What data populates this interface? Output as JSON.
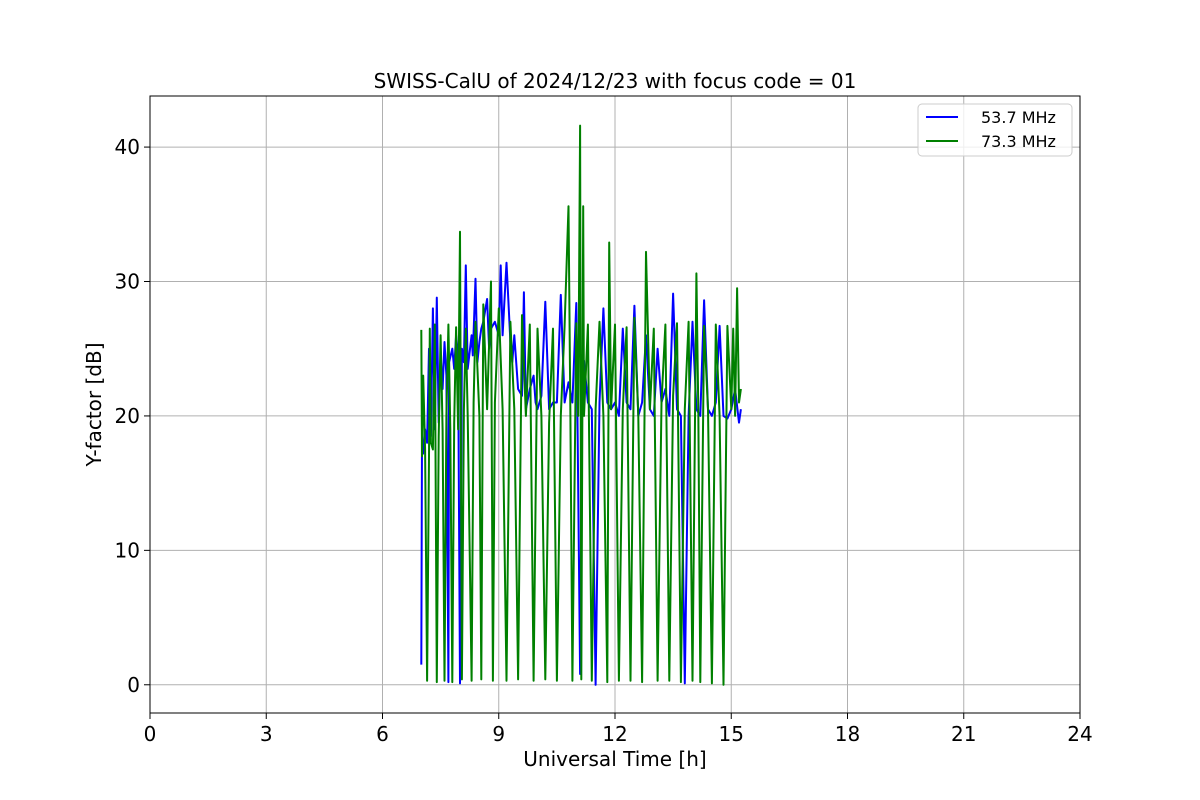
{
  "chart_data": {
    "type": "line",
    "title": "SWISS-CalU of 2024/12/23 with focus code = 01",
    "xlabel": "Universal Time [h]",
    "ylabel": "Y-factor [dB]",
    "xlim": [
      0,
      24
    ],
    "ylim": [
      -2.1,
      43.8
    ],
    "xticks": [
      0,
      3,
      6,
      9,
      12,
      15,
      18,
      21,
      24
    ],
    "xtick_labels": [
      "0",
      "3",
      "6",
      "9",
      "12",
      "15",
      "18",
      "21",
      "24"
    ],
    "yticks": [
      0,
      10,
      20,
      30,
      40
    ],
    "ytick_labels": [
      "0",
      "10",
      "20",
      "30",
      "40"
    ],
    "grid": true,
    "legend_position": "top-right",
    "series": [
      {
        "name": "53.7 MHz",
        "color": "#0000ff",
        "x": [
          7.0,
          7.02,
          7.05,
          7.1,
          7.15,
          7.2,
          7.25,
          7.3,
          7.35,
          7.4,
          7.45,
          7.5,
          7.55,
          7.6,
          7.65,
          7.7,
          7.72,
          7.8,
          7.85,
          7.9,
          7.95,
          8.0,
          8.05,
          8.1,
          8.15,
          8.2,
          8.3,
          8.33,
          8.4,
          8.45,
          8.5,
          8.55,
          8.6,
          8.7,
          8.75,
          8.8,
          8.9,
          9.0,
          9.05,
          9.1,
          9.2,
          9.3,
          9.35,
          9.4,
          9.5,
          9.6,
          9.65,
          9.7,
          9.8,
          9.9,
          9.95,
          10.0,
          10.1,
          10.2,
          10.3,
          10.4,
          10.5,
          10.6,
          10.7,
          10.8,
          10.9,
          11.0,
          11.1,
          11.15,
          11.2,
          11.3,
          11.4,
          11.5,
          11.6,
          11.7,
          11.8,
          11.9,
          12.0,
          12.1,
          12.2,
          12.3,
          12.4,
          12.5,
          12.6,
          12.7,
          12.8,
          12.9,
          13.0,
          13.1,
          13.2,
          13.3,
          13.4,
          13.5,
          13.6,
          13.7,
          13.8,
          13.9,
          14.0,
          14.1,
          14.2,
          14.3,
          14.4,
          14.5,
          14.6,
          14.7,
          14.8,
          14.9,
          15.0,
          15.1,
          15.2,
          15.25
        ],
        "y": [
          1.5,
          18.5,
          17.2,
          19.0,
          18.0,
          25.0,
          18.5,
          28.0,
          19.0,
          28.8,
          19.5,
          24.5,
          22.0,
          25.5,
          23.0,
          0.2,
          24.0,
          25.0,
          23.5,
          26.0,
          24.5,
          0.1,
          25.0,
          24.0,
          31.2,
          23.5,
          26.0,
          24.5,
          30.2,
          24.0,
          25.5,
          26.5,
          27.0,
          28.7,
          25.0,
          26.5,
          27.0,
          26.0,
          31.2,
          26.0,
          31.4,
          25.5,
          24.0,
          26.0,
          22.0,
          21.5,
          29.2,
          20.5,
          22.0,
          23.0,
          21.0,
          20.5,
          21.5,
          28.5,
          20.5,
          21.0,
          21.0,
          29.0,
          21.0,
          22.5,
          21.0,
          28.4,
          0.8,
          21.0,
          24.1,
          21.0,
          20.5,
          0.0,
          21.0,
          28.0,
          21.0,
          20.5,
          21.0,
          20.0,
          26.5,
          21.0,
          20.5,
          28.2,
          20.0,
          21.0,
          26.0,
          20.5,
          20.0,
          25.0,
          21.0,
          22.0,
          20.0,
          29.1,
          20.5,
          20.0,
          0.1,
          20.0,
          27.0,
          20.5,
          20.0,
          28.6,
          20.5,
          20.0,
          21.0,
          26.7,
          20.0,
          19.8,
          20.5,
          22.0,
          19.5,
          20.5
        ]
      },
      {
        "name": "73.3 MHz",
        "color": "#008000",
        "x": [
          7.0,
          7.02,
          7.05,
          7.1,
          7.15,
          7.2,
          7.22,
          7.25,
          7.3,
          7.35,
          7.4,
          7.45,
          7.5,
          7.55,
          7.6,
          7.65,
          7.7,
          7.75,
          7.8,
          7.85,
          7.9,
          7.95,
          8.0,
          8.05,
          8.1,
          8.15,
          8.2,
          8.3,
          8.35,
          8.4,
          8.5,
          8.55,
          8.6,
          8.7,
          8.8,
          8.85,
          8.9,
          9.0,
          9.1,
          9.2,
          9.3,
          9.4,
          9.5,
          9.6,
          9.7,
          9.8,
          9.9,
          10.0,
          10.1,
          10.2,
          10.3,
          10.4,
          10.5,
          10.6,
          10.7,
          10.8,
          10.85,
          10.9,
          11.0,
          11.05,
          11.1,
          11.13,
          11.18,
          11.2,
          11.3,
          11.4,
          11.5,
          11.6,
          11.7,
          11.8,
          11.85,
          11.9,
          12.0,
          12.1,
          12.2,
          12.3,
          12.4,
          12.5,
          12.6,
          12.7,
          12.8,
          12.9,
          13.0,
          13.1,
          13.2,
          13.3,
          13.4,
          13.5,
          13.6,
          13.7,
          13.8,
          13.9,
          14.0,
          14.1,
          14.15,
          14.2,
          14.3,
          14.4,
          14.5,
          14.6,
          14.7,
          14.8,
          14.9,
          15.0,
          15.05,
          15.1,
          15.15,
          15.2,
          15.25
        ],
        "y": [
          26.4,
          17.0,
          23.0,
          17.5,
          0.3,
          17.0,
          26.5,
          18.0,
          17.5,
          26.8,
          0.2,
          18.5,
          26.0,
          19.0,
          0.3,
          20.0,
          26.8,
          19.0,
          0.2,
          19.5,
          26.6,
          19.0,
          33.7,
          0.4,
          20.5,
          26.5,
          20.0,
          0.3,
          21.0,
          27.0,
          20.0,
          0.4,
          28.3,
          20.5,
          30.0,
          0.3,
          21.0,
          28.0,
          20.5,
          0.3,
          27.0,
          20.5,
          0.4,
          27.5,
          20.0,
          26.8,
          0.3,
          26.5,
          20.0,
          0.4,
          19.5,
          26.5,
          0.3,
          20.0,
          26.7,
          35.6,
          20.0,
          0.3,
          26.9,
          20.0,
          41.6,
          0.4,
          35.6,
          20.0,
          26.8,
          0.3,
          20.5,
          27.0,
          20.0,
          0.2,
          32.9,
          20.5,
          26.8,
          0.3,
          20.5,
          26.6,
          0.3,
          27.3,
          20.0,
          0.2,
          32.2,
          20.5,
          26.5,
          0.3,
          21.0,
          26.8,
          0.3,
          21.5,
          26.9,
          0.2,
          20.5,
          27.0,
          0.3,
          30.6,
          20.5,
          0.2,
          26.7,
          20.5,
          0.1,
          26.8,
          20.0,
          0.0,
          26.7,
          20.5,
          26.5,
          20.0,
          29.5,
          21.0,
          22.0
        ]
      }
    ]
  }
}
